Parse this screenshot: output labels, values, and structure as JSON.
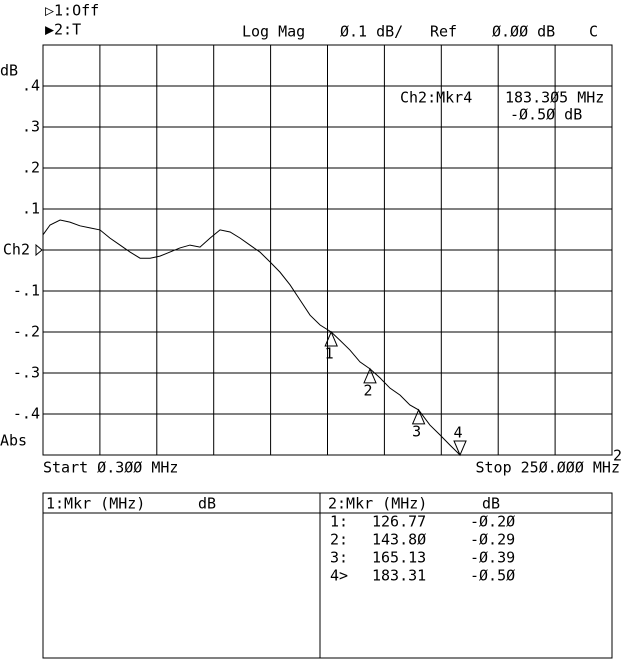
{
  "header": {
    "ch1": "▷1:Off",
    "ch2": "▶2:T",
    "format": "Log Mag",
    "scale": "Ø.1 dB/",
    "ref": "Ref",
    "ref_value": "Ø.ØØ dB",
    "flag": "C"
  },
  "chart_data": {
    "type": "line",
    "y_unit": "dB",
    "bottom_label": "Abs",
    "start": "Start Ø.3ØØ MHz",
    "stop": "Stop 25Ø.ØØØ MHz",
    "channel_tag": "2",
    "readout": [
      "Ch2:Mkr4",
      "183.3Ø5 MHz",
      "-Ø.5Ø dB"
    ],
    "xlim": [
      0.3,
      250
    ],
    "ylim": [
      -0.5,
      0.5
    ],
    "yticks": [
      {
        "value": 0.5,
        "label": ""
      },
      {
        "value": 0.4,
        "label": ".4"
      },
      {
        "value": 0.3,
        "label": ".3"
      },
      {
        "value": 0.2,
        "label": ".2"
      },
      {
        "value": 0.1,
        "label": ".1"
      },
      {
        "value": 0,
        "label": "Ch2"
      },
      {
        "value": -0.1,
        "label": "-.1"
      },
      {
        "value": -0.2,
        "label": "-.2"
      },
      {
        "value": -0.3,
        "label": "-.3"
      },
      {
        "value": -0.4,
        "label": "-.4"
      },
      {
        "value": -0.5,
        "label": ""
      }
    ],
    "grid": true,
    "x": [
      0.3,
      3.4,
      7.8,
      12.1,
      16.5,
      20.9,
      25.3,
      29.7,
      34.1,
      38.5,
      42.9,
      47.3,
      51.6,
      56.0,
      60.4,
      64.8,
      69.2,
      73.6,
      78.0,
      82.4,
      86.8,
      91.1,
      95.5,
      99.9,
      104.3,
      108.7,
      113.1,
      117.5,
      121.9,
      126.77,
      130.6,
      135.0,
      139.4,
      143.8,
      148.2,
      152.6,
      157.0,
      161.3,
      165.13,
      170.1,
      174.5,
      178.9,
      183.31,
      250
    ],
    "series": [
      {
        "color": "#000000",
        "values": [
          0.037,
          0.061,
          0.073,
          0.068,
          0.059,
          0.054,
          0.049,
          0.029,
          0.012,
          -0.005,
          -0.02,
          -0.02,
          -0.015,
          -0.005,
          0.005,
          0.012,
          0.007,
          0.029,
          0.049,
          0.044,
          0.029,
          0.012,
          -0.005,
          -0.029,
          -0.054,
          -0.085,
          -0.122,
          -0.159,
          -0.183,
          -0.2,
          -0.22,
          -0.244,
          -0.273,
          -0.29,
          -0.312,
          -0.337,
          -0.354,
          -0.378,
          -0.39,
          -0.427,
          -0.451,
          -0.476,
          -0.5,
          -0.5
        ]
      }
    ],
    "markers": [
      {
        "label": "1",
        "x": 126.77,
        "y": -0.2
      },
      {
        "label": "2",
        "x": 143.8,
        "y": -0.29
      },
      {
        "label": "3",
        "x": 165.13,
        "y": -0.39
      },
      {
        "label": "4",
        "x": 183.31,
        "y": -0.5
      }
    ]
  },
  "marker_table": {
    "left_header": "1:Mkr (MHz)",
    "left_unit": "dB",
    "right_header": "2:Mkr (MHz)",
    "right_unit": "dB",
    "rows": [
      [
        "1:",
        "126.77",
        "-Ø.2Ø"
      ],
      [
        "2:",
        "143.8Ø",
        "-Ø.29"
      ],
      [
        "3:",
        "165.13",
        "-Ø.39"
      ],
      [
        "4>",
        "183.31",
        "-Ø.5Ø"
      ]
    ]
  }
}
